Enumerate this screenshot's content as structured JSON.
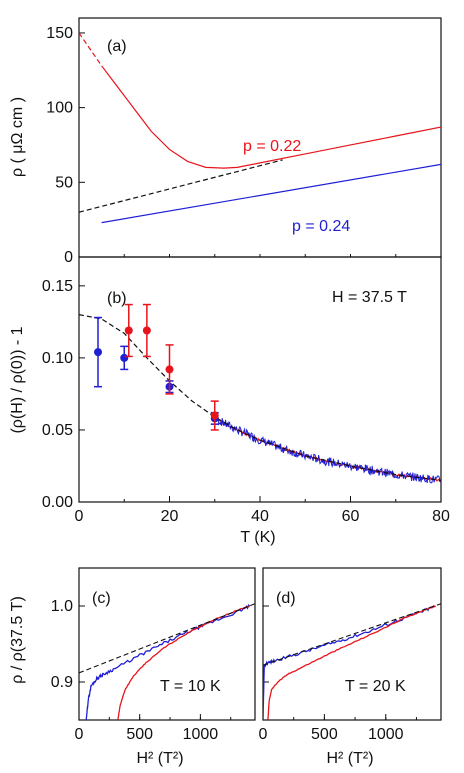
{
  "colors": {
    "red": "#e8141b",
    "blue": "#1f1fd6",
    "dashed": "#111111",
    "axis": "#111111"
  },
  "chart_data": [
    {
      "id": "a",
      "type": "line",
      "panel_label": "(a)",
      "ylabel": "ρ  ( μΩ cm )",
      "xlim": [
        0,
        80
      ],
      "ylim": [
        0,
        160
      ],
      "yticks": [
        0,
        50,
        100,
        150
      ],
      "annotations": [
        {
          "text": "p = 0.22",
          "color": "#e8141b"
        },
        {
          "text": "p = 0.24",
          "color": "#1f1fd6"
        }
      ],
      "series": [
        {
          "color": "#e8141b",
          "style": "solid",
          "x": [
            5,
            8,
            12,
            16,
            20,
            24,
            28,
            32,
            35,
            40,
            50,
            60,
            70,
            80
          ],
          "y": [
            128,
            116,
            100,
            84,
            72,
            64,
            60,
            59.5,
            60,
            63,
            69,
            75,
            81,
            87
          ]
        },
        {
          "color": "#e8141b",
          "style": "dashed",
          "x": [
            0,
            5
          ],
          "y": [
            150,
            128
          ]
        },
        {
          "color": "#1f1fd6",
          "style": "solid",
          "x": [
            5,
            80
          ],
          "y": [
            23,
            62
          ]
        },
        {
          "color": "#111111",
          "style": "dashed",
          "x": [
            0,
            45
          ],
          "y": [
            30,
            65
          ]
        }
      ]
    },
    {
      "id": "b",
      "type": "scatter",
      "panel_label": "(b)",
      "annotation": "H = 37.5 T",
      "ylabel": "(ρ(H) / ρ(0)) - 1",
      "xlabel": "T (K)",
      "xlim": [
        0,
        80
      ],
      "ylim": [
        0,
        0.17
      ],
      "xticks": [
        0,
        20,
        40,
        60,
        80
      ],
      "yticks": [
        0.0,
        0.05,
        0.1,
        0.15
      ],
      "ytick_labels": [
        "0.00",
        "0.05",
        "0.10",
        "0.15"
      ],
      "points": [
        {
          "color": "#1f1fd6",
          "x": 4.2,
          "y": 0.104,
          "err": 0.024
        },
        {
          "color": "#1f1fd6",
          "x": 10,
          "y": 0.1,
          "err": 0.008
        },
        {
          "color": "#1f1fd6",
          "x": 20,
          "y": 0.08,
          "err": 0.004
        },
        {
          "color": "#1f1fd6",
          "x": 30,
          "y": 0.058,
          "err": 0.004
        },
        {
          "color": "#e8141b",
          "x": 11,
          "y": 0.119,
          "err": 0.018
        },
        {
          "color": "#e8141b",
          "x": 15,
          "y": 0.119,
          "err": 0.018
        },
        {
          "color": "#e8141b",
          "x": 20,
          "y": 0.092,
          "err": 0.017
        },
        {
          "color": "#e8141b",
          "x": 30,
          "y": 0.06,
          "err": 0.01
        }
      ],
      "dashed_curve": {
        "x": [
          0,
          5,
          10,
          15,
          20,
          25,
          30,
          35,
          40,
          50,
          60,
          70,
          80
        ],
        "y": [
          0.13,
          0.127,
          0.117,
          0.1,
          0.084,
          0.07,
          0.059,
          0.05,
          0.043,
          0.032,
          0.025,
          0.019,
          0.015
        ]
      },
      "noisy_trace": {
        "x": [
          30,
          35,
          40,
          45,
          50,
          55,
          60,
          65,
          70,
          75,
          80
        ],
        "y": [
          0.058,
          0.05,
          0.043,
          0.037,
          0.032,
          0.028,
          0.025,
          0.022,
          0.019,
          0.017,
          0.015
        ]
      }
    },
    {
      "id": "c",
      "type": "line",
      "panel_label": "(c)",
      "annotation": "T = 10 K",
      "ylabel": "ρ / ρ(37.5 T)",
      "xlabel": "H² (T²)",
      "xlim": [
        0,
        1450
      ],
      "ylim": [
        0.85,
        1.05
      ],
      "xticks": [
        0,
        500,
        1000
      ],
      "yticks": [
        0.9,
        1.0
      ],
      "ytick_labels": [
        "0.9",
        "1.0"
      ],
      "series": [
        {
          "color": "#1f1fd6",
          "x": [
            60,
            75,
            100,
            150,
            200,
            300,
            500,
            700,
            900,
            1100,
            1300,
            1406
          ],
          "y": [
            0.85,
            0.875,
            0.895,
            0.905,
            0.91,
            0.918,
            0.935,
            0.951,
            0.966,
            0.979,
            0.992,
            1.0
          ]
        },
        {
          "color": "#e8141b",
          "x": [
            320,
            340,
            380,
            450,
            550,
            700,
            900,
            1100,
            1300,
            1406
          ],
          "y": [
            0.85,
            0.87,
            0.89,
            0.908,
            0.925,
            0.945,
            0.965,
            0.981,
            0.994,
            1.0
          ]
        },
        {
          "color": "#111111",
          "style": "dashed",
          "x": [
            0,
            1450
          ],
          "y": [
            0.912,
            1.003
          ]
        }
      ]
    },
    {
      "id": "d",
      "type": "line",
      "panel_label": "(d)",
      "annotation": "T = 20 K",
      "xlabel": "H² (T²)",
      "xlim": [
        0,
        1450
      ],
      "ylim": [
        0.85,
        1.05
      ],
      "xticks": [
        0,
        500,
        1000
      ],
      "series": [
        {
          "color": "#1f1fd6",
          "x": [
            0,
            10,
            30,
            100,
            300,
            500,
            700,
            900,
            1100,
            1300,
            1406
          ],
          "y": [
            0.85,
            0.92,
            0.925,
            0.928,
            0.938,
            0.948,
            0.958,
            0.969,
            0.981,
            0.993,
            1.0
          ]
        },
        {
          "color": "#e8141b",
          "x": [
            40,
            50,
            70,
            120,
            200,
            350,
            550,
            750,
            950,
            1150,
            1350,
            1406
          ],
          "y": [
            0.85,
            0.875,
            0.89,
            0.9,
            0.91,
            0.922,
            0.938,
            0.953,
            0.968,
            0.984,
            0.997,
            1.0
          ]
        },
        {
          "color": "#111111",
          "style": "dashed",
          "x": [
            0,
            1450
          ],
          "y": [
            0.922,
            1.003
          ]
        }
      ]
    }
  ]
}
